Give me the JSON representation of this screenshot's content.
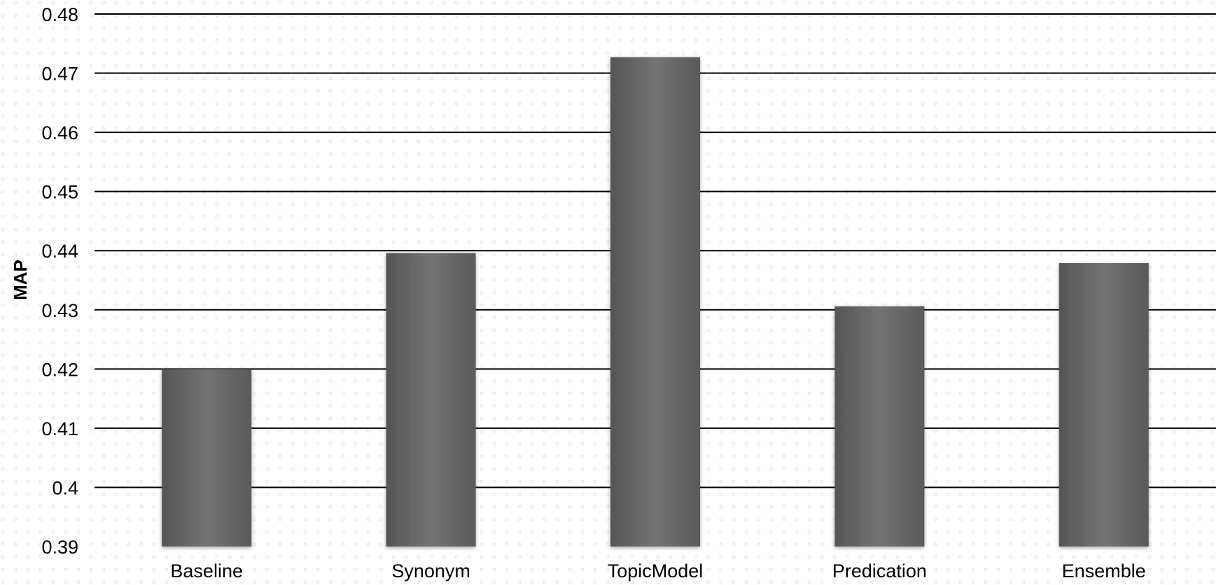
{
  "chart_data": {
    "type": "bar",
    "title": "",
    "xlabel": "",
    "ylabel": "MAP",
    "categories": [
      "Baseline",
      "Synonym",
      "TopicModel",
      "Predication",
      "Ensemble"
    ],
    "values": [
      0.42,
      0.4396,
      0.4727,
      0.4306,
      0.4379
    ],
    "ylim": [
      0.39,
      0.48
    ],
    "yticks": [
      "0.39",
      "0.4",
      "0.41",
      "0.42",
      "0.43",
      "0.44",
      "0.45",
      "0.46",
      "0.47",
      "0.48"
    ],
    "grid": true,
    "legend": "none",
    "colors": {
      "bar_dark": "#575757",
      "bar_light": "#737373",
      "grid": "#000000",
      "background_dot": "#d9d9d9"
    }
  }
}
